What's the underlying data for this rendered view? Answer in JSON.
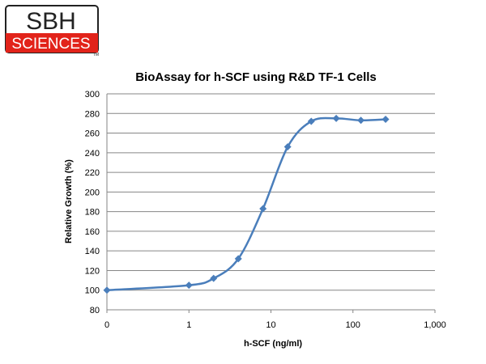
{
  "logo": {
    "top_text": "SBH",
    "bottom_text": "SCIENCES",
    "mark": "TM",
    "brand_red": "#e2231a",
    "brand_dark": "#222222"
  },
  "chart_data": {
    "type": "line",
    "title": "BioAssay for h-SCF using R&D TF-1 Cells",
    "xlabel": "h-SCF (ng/ml)",
    "ylabel": "Relative Growth (%)",
    "x_scale": "log",
    "x_ticks": [
      "0",
      "1",
      "10",
      "100",
      "1,000"
    ],
    "y_ticks": [
      80,
      100,
      120,
      140,
      160,
      180,
      200,
      220,
      240,
      260,
      280,
      300
    ],
    "ylim": [
      80,
      300
    ],
    "grid": "horizontal",
    "legend": "none",
    "series": [
      {
        "color": "#4a7ebb",
        "x": [
          0.1,
          1,
          2,
          4,
          8,
          16,
          31,
          62.5,
          125,
          250
        ],
        "y": [
          100,
          105,
          112,
          132,
          183,
          246,
          272,
          275,
          273,
          274
        ]
      }
    ]
  }
}
